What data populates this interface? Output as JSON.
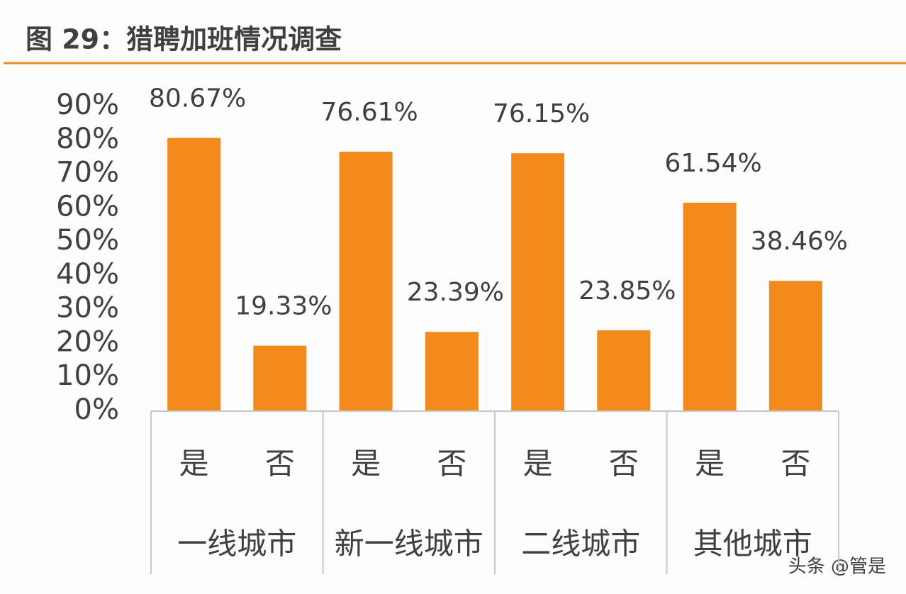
{
  "chart_data": {
    "type": "bar",
    "title": "图 29：猎聘加班情况调查",
    "categories": [
      "是",
      "否",
      "是",
      "否",
      "是",
      "否",
      "是",
      "否"
    ],
    "group_labels": [
      "一线城市",
      "新一线城市",
      "二线城市",
      "其他城市"
    ],
    "values": [
      80.67,
      19.33,
      76.61,
      23.39,
      76.15,
      23.85,
      61.54,
      38.46
    ],
    "value_labels": [
      "80.67%",
      "19.33%",
      "76.61%",
      "23.39%",
      "76.15%",
      "23.85%",
      "61.54%",
      "38.46%"
    ],
    "color": "#f28a1c",
    "ylim": [
      0,
      90
    ],
    "yticks": [
      {
        "value": 0,
        "label": "0%"
      },
      {
        "value": 10,
        "label": "10%"
      },
      {
        "value": 20,
        "label": "20%"
      },
      {
        "value": 30,
        "label": "30%"
      },
      {
        "value": 40,
        "label": "40%"
      },
      {
        "value": 50,
        "label": "50%"
      },
      {
        "value": 60,
        "label": "60%"
      },
      {
        "value": 70,
        "label": "70%"
      },
      {
        "value": 80,
        "label": "80%"
      },
      {
        "value": 90,
        "label": "90%"
      }
    ],
    "grid": false,
    "watermark": "头条 @管是"
  }
}
